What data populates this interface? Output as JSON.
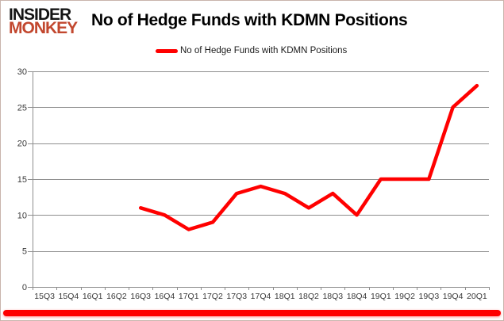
{
  "header": {
    "logo_line1": "INSIDER",
    "logo_line2": "MONKEY",
    "title": "No of Hedge Funds with KDMN Positions"
  },
  "legend": {
    "label": "No of Hedge Funds with KDMN Positions"
  },
  "colors": {
    "series": "#ff0000",
    "logo_accent": "#c2472e",
    "grid": "#8e8e8e",
    "axis_text": "#3a3a3a",
    "bottom_bar": "#fe0000"
  },
  "chart_data": {
    "type": "line",
    "title": "No of Hedge Funds with KDMN Positions",
    "categories": [
      "15Q3",
      "15Q4",
      "16Q1",
      "16Q2",
      "16Q3",
      "16Q4",
      "17Q1",
      "17Q2",
      "17Q3",
      "17Q4",
      "18Q1",
      "18Q2",
      "18Q3",
      "18Q4",
      "19Q1",
      "19Q2",
      "19Q3",
      "19Q4",
      "20Q1"
    ],
    "series": [
      {
        "name": "No of Hedge Funds with KDMN Positions",
        "values": [
          null,
          null,
          null,
          null,
          11,
          10,
          8,
          9,
          13,
          14,
          13,
          11,
          13,
          10,
          15,
          15,
          15,
          25,
          28
        ]
      }
    ],
    "ylim": [
      0,
      30
    ],
    "yticks": [
      0,
      5,
      10,
      15,
      20,
      25,
      30
    ],
    "grid": "horizontal",
    "legend_position": "top"
  }
}
